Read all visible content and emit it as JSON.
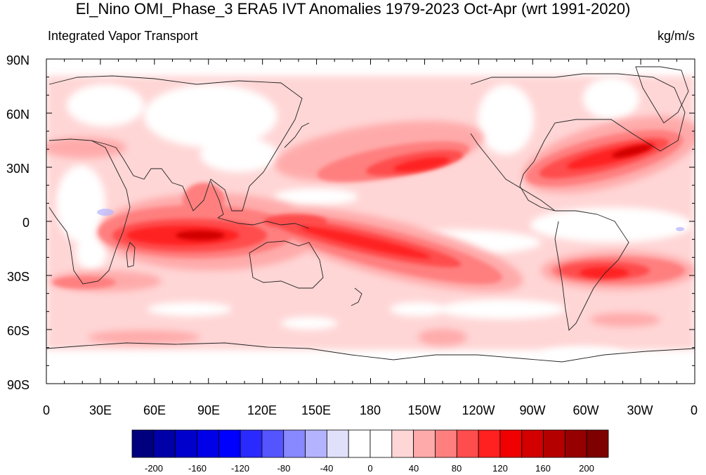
{
  "title": "El_Nino OMI_Phase_3 ERA5 IVT Anomalies 1979-2023 Oct-Apr (wrt 1991-2020)",
  "subtitle_left": "Integrated Vapor Transport",
  "subtitle_right": "kg/m/s",
  "lat_labels": [
    "90N",
    "60N",
    "30N",
    "0",
    "30S",
    "60S",
    "90S"
  ],
  "lon_labels": [
    "0",
    "30E",
    "60E",
    "90E",
    "120E",
    "150E",
    "180",
    "150W",
    "120W",
    "90W",
    "60W",
    "30W",
    "0"
  ],
  "colorbar": {
    "labels": [
      "-200",
      "-160",
      "-120",
      "-80",
      "-40",
      "0",
      "40",
      "80",
      "120",
      "160",
      "200"
    ],
    "colors": [
      "#00007f",
      "#0000a8",
      "#0000cc",
      "#0000e8",
      "#0000ff",
      "#2a2aff",
      "#5555ff",
      "#8888ff",
      "#b3b3ff",
      "#e0e0fb",
      "#ffffff",
      "#ffffff",
      "#ffd6d6",
      "#ffaaaa",
      "#ff7f7f",
      "#ff4d4d",
      "#ff2020",
      "#f00000",
      "#d20000",
      "#b50000",
      "#960000",
      "#7f0000"
    ]
  },
  "colors": {
    "light": "#ffd6d6",
    "medium": "#ffaaaa",
    "strong": "#ff7f7f",
    "heavy": "#ff4d4d",
    "intense": "#ff2020",
    "extreme": "#f00000",
    "darkest": "#d20000",
    "negative": "#b3b3ff"
  }
}
